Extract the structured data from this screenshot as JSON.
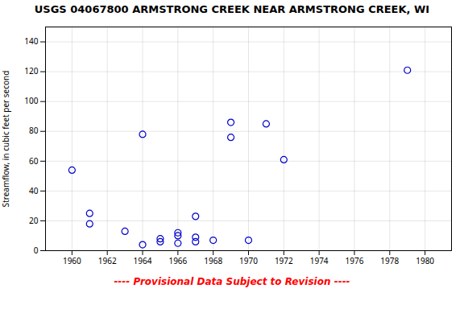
{
  "chart_data": {
    "type": "scatter",
    "title": "USGS 04067800 ARMSTRONG CREEK NEAR ARMSTRONG CREEK, WI",
    "ylabel": "Streamflow, in cubic feet per second",
    "x": [
      1960,
      1961,
      1961,
      1963,
      1964,
      1964,
      1965,
      1965,
      1966,
      1966,
      1966,
      1967,
      1967,
      1967,
      1968,
      1969,
      1969,
      1970,
      1971,
      1972,
      1979
    ],
    "values": [
      54,
      25,
      18,
      13,
      4,
      78,
      8,
      6,
      10,
      12,
      5,
      23,
      9,
      6,
      7,
      86,
      76,
      7,
      85,
      61,
      121
    ],
    "color": "#0000CC",
    "marker": "circle",
    "xlim": [
      1958.5,
      1981.5
    ],
    "ylim": [
      0,
      150
    ],
    "xticks": [
      1960,
      1962,
      1964,
      1966,
      1968,
      1970,
      1972,
      1974,
      1976,
      1978,
      1980
    ],
    "yticks": [
      0,
      20,
      40,
      60,
      80,
      100,
      120,
      140
    ],
    "grid": true,
    "annotations": [
      {
        "text": "---- Provisional Data Subject to Revision ----",
        "color": "#ff0000"
      }
    ]
  }
}
